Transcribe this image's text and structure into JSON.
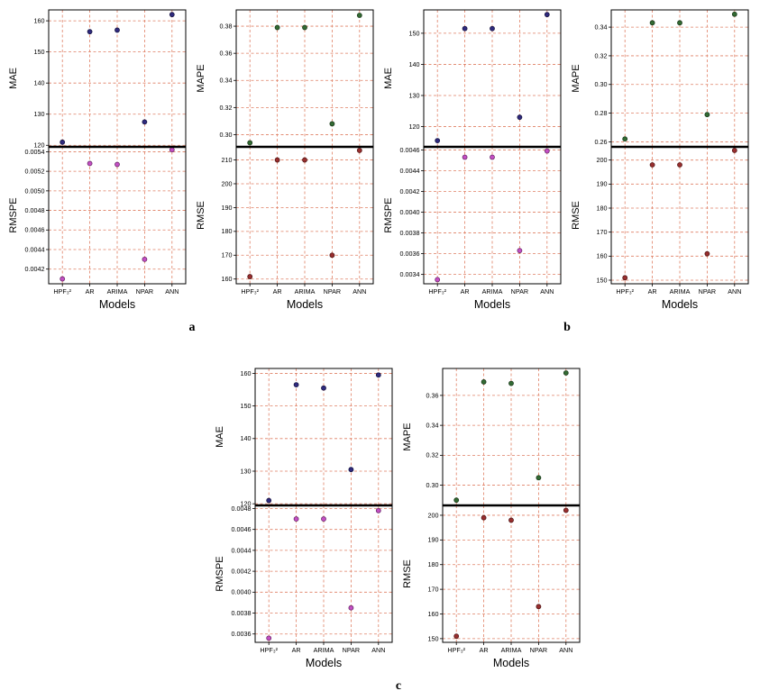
{
  "page": {
    "background": "#ffffff"
  },
  "chart_data": {
    "type": "scatter",
    "xlabel": "Models",
    "categories": [
      "HPF₃²",
      "AR",
      "ARIMA",
      "NPAR",
      "ANN"
    ],
    "grid": {
      "color": "#df7f63",
      "style": "dashed"
    },
    "frame_color": "#000000",
    "reference_line_color": "#000000",
    "panels": [
      {
        "label": "a",
        "columns": [
          {
            "top": {
              "ylabel": "MAE",
              "color": "#2f2a7e",
              "values": [
                121,
                156.5,
                157,
                127.5,
                162
              ],
              "yticks": [
                120,
                130,
                140,
                150,
                160
              ],
              "ylim": [
                119.5,
                163.5
              ],
              "tick_decimals": 0
            },
            "bottom": {
              "ylabel": "RMSPE",
              "color": "#c44fc4",
              "values": [
                0.0041,
                0.00528,
                0.00527,
                0.0043,
                0.00542
              ],
              "yticks": [
                0.0042,
                0.0044,
                0.0046,
                0.0048,
                0.005,
                0.0052,
                0.0054
              ],
              "ylim": [
                0.00405,
                0.00545
              ],
              "tick_decimals": 4
            }
          },
          {
            "top": {
              "ylabel": "MAPE",
              "color": "#336b33",
              "values": [
                0.294,
                0.379,
                0.379,
                0.308,
                0.388
              ],
              "yticks": [
                0.3,
                0.32,
                0.34,
                0.36,
                0.38
              ],
              "ylim": [
                0.291,
                0.392
              ],
              "tick_decimals": 2
            },
            "bottom": {
              "ylabel": "RMSE",
              "color": "#992e2e",
              "values": [
                161,
                210,
                210,
                170,
                214
              ],
              "yticks": [
                160,
                170,
                180,
                190,
                200,
                210
              ],
              "ylim": [
                158,
                215.5
              ],
              "tick_decimals": 0
            }
          }
        ]
      },
      {
        "label": "b",
        "columns": [
          {
            "top": {
              "ylabel": "MAE",
              "color": "#2f2a7e",
              "values": [
                115.5,
                151.5,
                151.5,
                123,
                156
              ],
              "yticks": [
                120,
                130,
                140,
                150
              ],
              "ylim": [
                113.5,
                157.5
              ],
              "tick_decimals": 0
            },
            "bottom": {
              "ylabel": "RMSPE",
              "color": "#c44fc4",
              "values": [
                0.00335,
                0.00453,
                0.00453,
                0.00363,
                0.00459
              ],
              "yticks": [
                0.0034,
                0.0036,
                0.0038,
                0.004,
                0.0042,
                0.0044,
                0.0046
              ],
              "ylim": [
                0.00331,
                0.00463
              ],
              "tick_decimals": 4
            }
          },
          {
            "top": {
              "ylabel": "MAPE",
              "color": "#336b33",
              "values": [
                0.262,
                0.343,
                0.343,
                0.279,
                0.349
              ],
              "yticks": [
                0.26,
                0.28,
                0.3,
                0.32,
                0.34
              ],
              "ylim": [
                0.2565,
                0.352
              ],
              "tick_decimals": 2
            },
            "bottom": {
              "ylabel": "RMSE",
              "color": "#992e2e",
              "values": [
                151,
                198,
                198,
                161,
                204
              ],
              "yticks": [
                150,
                160,
                170,
                180,
                190,
                200
              ],
              "ylim": [
                148.5,
                205.5
              ],
              "tick_decimals": 0
            }
          }
        ]
      },
      {
        "label": "c",
        "columns": [
          {
            "top": {
              "ylabel": "MAE",
              "color": "#2f2a7e",
              "values": [
                121,
                156.5,
                155.5,
                130.5,
                159.5
              ],
              "yticks": [
                120,
                130,
                140,
                150,
                160
              ],
              "ylim": [
                119.5,
                161.5
              ],
              "tick_decimals": 0
            },
            "bottom": {
              "ylabel": "RMSPE",
              "color": "#c44fc4",
              "values": [
                0.00356,
                0.0047,
                0.0047,
                0.00385,
                0.00478
              ],
              "yticks": [
                0.0036,
                0.0038,
                0.004,
                0.0042,
                0.0044,
                0.0046,
                0.0048
              ],
              "ylim": [
                0.00352,
                0.00483
              ],
              "tick_decimals": 4
            }
          },
          {
            "top": {
              "ylabel": "MAPE",
              "color": "#336b33",
              "values": [
                0.29,
                0.369,
                0.368,
                0.305,
                0.375
              ],
              "yticks": [
                0.3,
                0.32,
                0.34,
                0.36
              ],
              "ylim": [
                0.2865,
                0.378
              ],
              "tick_decimals": 2
            },
            "bottom": {
              "ylabel": "RMSE",
              "color": "#992e2e",
              "values": [
                151,
                199,
                198,
                163,
                202
              ],
              "yticks": [
                150,
                160,
                170,
                180,
                190,
                200
              ],
              "ylim": [
                148.5,
                204
              ],
              "tick_decimals": 0
            }
          }
        ]
      }
    ]
  }
}
